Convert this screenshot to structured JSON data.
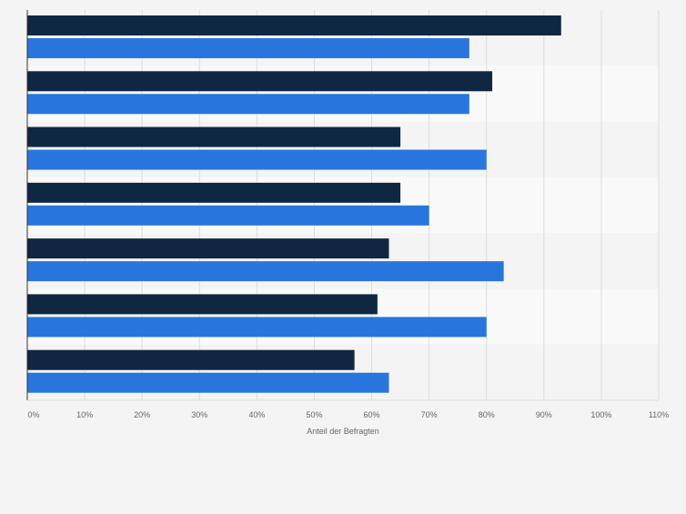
{
  "chart_data": {
    "type": "bar",
    "orientation": "horizontal",
    "categories": [
      "",
      "",
      "",
      "",
      "",
      "",
      ""
    ],
    "series": [
      {
        "color": "#0f2742",
        "values": [
          93,
          81,
          65,
          65,
          63,
          61,
          57
        ]
      },
      {
        "color": "#2876dd",
        "values": [
          77,
          77,
          80,
          70,
          83,
          80,
          63
        ]
      }
    ],
    "xlabel": "Anteil der Befragten",
    "xlim": [
      0,
      110
    ],
    "xticks": [
      0,
      10,
      20,
      30,
      40,
      50,
      60,
      70,
      80,
      90,
      100,
      110
    ],
    "tick_suffix": "%",
    "grid": true,
    "legend": "none"
  },
  "colors": {
    "background": "#f4f4f4",
    "band_alt": "#f9f9f9",
    "grid": "#dddddd",
    "axis": "#333333",
    "text": "#666666"
  }
}
